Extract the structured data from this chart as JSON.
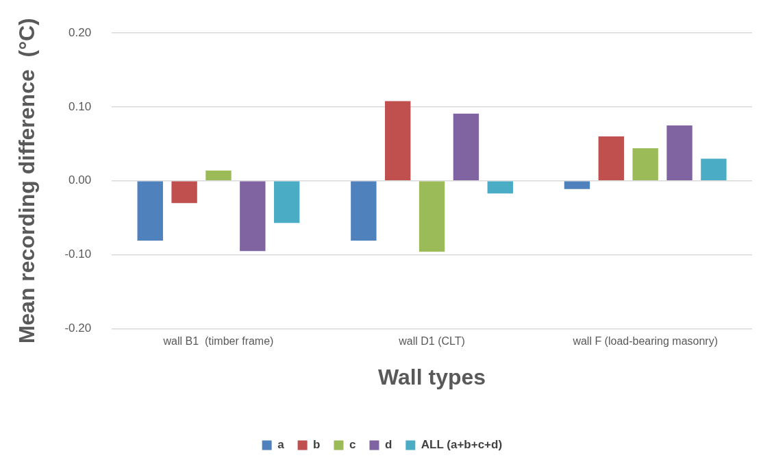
{
  "chart_data": {
    "type": "bar",
    "xlabel": "Wall types",
    "ylabel": "Mean recording difference  (°C)",
    "categories": [
      "wall B1  (timber frame)",
      "wall D1 (CLT)",
      "wall F (load-bearing masonry)"
    ],
    "series": [
      {
        "name": "a",
        "color": "#4f81bd",
        "values": [
          -0.081,
          -0.081,
          -0.011
        ]
      },
      {
        "name": "b",
        "color": "#c0504d",
        "values": [
          -0.03,
          0.108,
          0.06
        ]
      },
      {
        "name": "c",
        "color": "#9bbb59",
        "values": [
          0.014,
          -0.096,
          0.044
        ]
      },
      {
        "name": "d",
        "color": "#8064a2",
        "values": [
          -0.095,
          0.091,
          0.075
        ]
      },
      {
        "name": "ALL (a+b+c+d)",
        "color": "#4bacc6",
        "values": [
          -0.057,
          -0.017,
          0.03
        ]
      }
    ],
    "ylim": [
      -0.2,
      0.2
    ],
    "yticks": [
      {
        "value": -0.2,
        "label": "-0.20"
      },
      {
        "value": -0.1,
        "label": "-0.10"
      },
      {
        "value": 0,
        "label": "0.00"
      },
      {
        "value": 0.1,
        "label": "0.10"
      },
      {
        "value": 0.2,
        "label": "0.20"
      }
    ],
    "grid": "y",
    "legend": "bottom"
  }
}
